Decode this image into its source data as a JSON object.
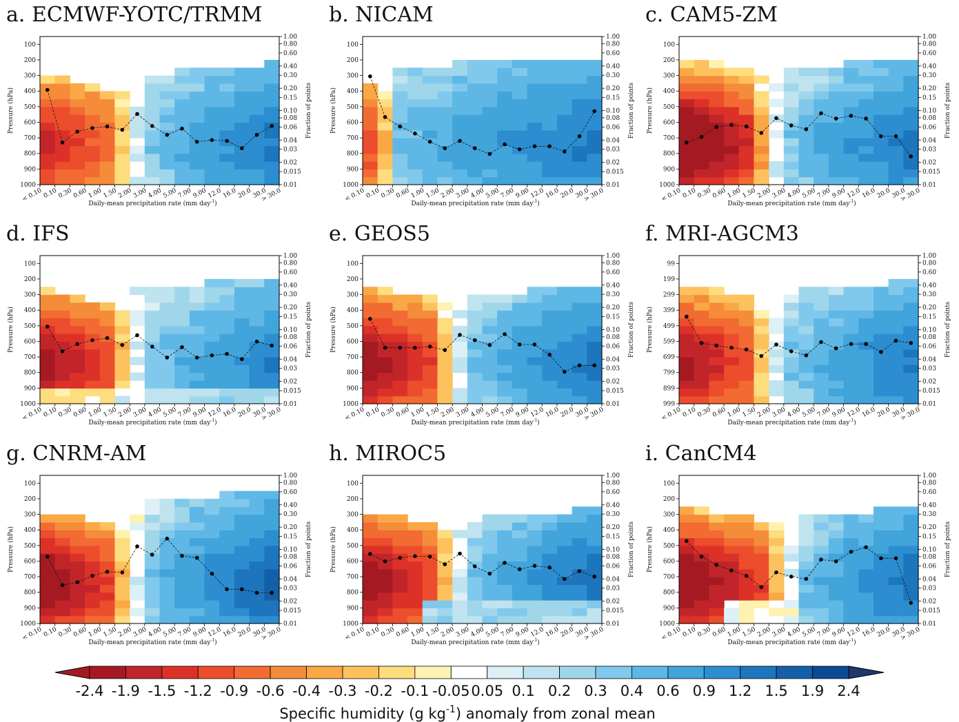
{
  "chart_data": {
    "type": "heatmap",
    "xlabel": "Daily-mean precipitation rate (mm day",
    "xlabel_sup": "-1",
    "xlabel_end": ")",
    "ylabel_left": "Pressure (hPa)",
    "ylabel_right": "Fraction of points",
    "x_tick_labels": [
      "< 0.10",
      "0.10",
      "0.30",
      "0.60",
      "1.00",
      "1.50",
      "2.00",
      "3.00",
      "4.00",
      "5.00",
      "7.00",
      "9.00",
      "12.0",
      "16.0",
      "20.0",
      "30.0",
      "> 30.0"
    ],
    "y_tick_labels_default": [
      "100",
      "200",
      "300",
      "400",
      "500",
      "600",
      "700",
      "800",
      "900",
      "1000"
    ],
    "y_tick_labels_mri": [
      "99",
      "199",
      "299",
      "399",
      "499",
      "599",
      "699",
      "799",
      "899",
      "999"
    ],
    "right_tick_labels": [
      "1.00",
      "0.80",
      "0.60",
      "0.40",
      "0.30",
      "0.20",
      "0.15",
      "0.10",
      "0.08",
      "0.06",
      "0.04",
      "0.03",
      "0.02",
      "0.015",
      "0.01"
    ],
    "right_axis_range": [
      0.01,
      1.0
    ],
    "right_axis_scale": "log",
    "pressure_range": [
      1000,
      50
    ],
    "colorbar": {
      "label": "Specific humidity (g kg",
      "label_sup": "-1",
      "label_end": ") anomaly from zonal mean",
      "levels": [
        "-2.4",
        "-1.9",
        "-1.5",
        "-1.2",
        "-0.9",
        "-0.6",
        "-0.4",
        "-0.3",
        "-0.2",
        "-0.1",
        "-0.05",
        "0.05",
        "0.1",
        "0.2",
        "0.3",
        "0.4",
        "0.6",
        "0.9",
        "1.2",
        "1.5",
        "1.9",
        "2.4"
      ],
      "colors": [
        "#a51a22",
        "#c1252a",
        "#dc3128",
        "#ec4d2c",
        "#f26b32",
        "#f58c3a",
        "#f9a845",
        "#fdc25e",
        "#fedd7f",
        "#fff2b0",
        "#ffffff",
        "#dcf0f6",
        "#bfe3ef",
        "#a0d6ea",
        "#80c9ed",
        "#5fb7e5",
        "#41a4db",
        "#2c8ed0",
        "#1d75bd",
        "#1460a8",
        "#0d4a94"
      ],
      "extend_low": "#a51a22",
      "extend_high": "#1e3a6c"
    },
    "panels": [
      {
        "title": "a. ECMWF-YOTC/TRMM",
        "fraction": [
          0.19,
          0.037,
          0.052,
          0.058,
          0.061,
          0.055,
          0.09,
          0.062,
          0.047,
          0.057,
          0.038,
          0.04,
          0.039,
          0.031,
          0.047,
          0.062
        ]
      },
      {
        "title": "b. NICAM",
        "fraction": [
          0.29,
          0.082,
          0.061,
          0.049,
          0.038,
          0.031,
          0.039,
          0.031,
          0.026,
          0.035,
          0.03,
          0.033,
          0.033,
          0.028,
          0.045,
          0.098
        ]
      },
      {
        "title": "c. CAM5-ZM",
        "fraction": [
          0.037,
          0.044,
          0.06,
          0.064,
          0.061,
          0.05,
          0.079,
          0.063,
          0.056,
          0.092,
          0.078,
          0.085,
          0.078,
          0.045,
          0.045,
          0.024
        ]
      },
      {
        "title": "d. IFS",
        "fraction": [
          0.11,
          0.051,
          0.064,
          0.072,
          0.077,
          0.062,
          0.084,
          0.059,
          0.042,
          0.058,
          0.042,
          0.045,
          0.047,
          0.04,
          0.069,
          0.061
        ]
      },
      {
        "title": "e. GEOS5",
        "fraction": [
          0.14,
          0.057,
          0.057,
          0.057,
          0.059,
          0.053,
          0.085,
          0.072,
          0.062,
          0.087,
          0.063,
          0.063,
          0.046,
          0.027,
          0.033,
          0.033
        ]
      },
      {
        "title": "f. MRI-AGCM3",
        "fraction": [
          0.15,
          0.066,
          0.061,
          0.057,
          0.054,
          0.044,
          0.063,
          0.051,
          0.045,
          0.068,
          0.056,
          0.064,
          0.064,
          0.05,
          0.071,
          0.066
        ]
      },
      {
        "title": "g. CNRM-AM",
        "fraction": [
          0.08,
          0.033,
          0.036,
          0.044,
          0.05,
          0.049,
          0.11,
          0.085,
          0.14,
          0.082,
          0.077,
          0.047,
          0.029,
          0.029,
          0.026,
          0.026
        ]
      },
      {
        "title": "h. MIROC5",
        "fraction": [
          0.087,
          0.069,
          0.077,
          0.081,
          0.08,
          0.063,
          0.088,
          0.059,
          0.047,
          0.066,
          0.054,
          0.06,
          0.057,
          0.04,
          0.051,
          0.043
        ]
      },
      {
        "title": "i. CanCM4",
        "fraction": [
          0.13,
          0.08,
          0.062,
          0.052,
          0.044,
          0.031,
          0.049,
          0.043,
          0.04,
          0.073,
          0.069,
          0.093,
          0.107,
          0.076,
          0.076,
          0.019
        ]
      }
    ]
  }
}
